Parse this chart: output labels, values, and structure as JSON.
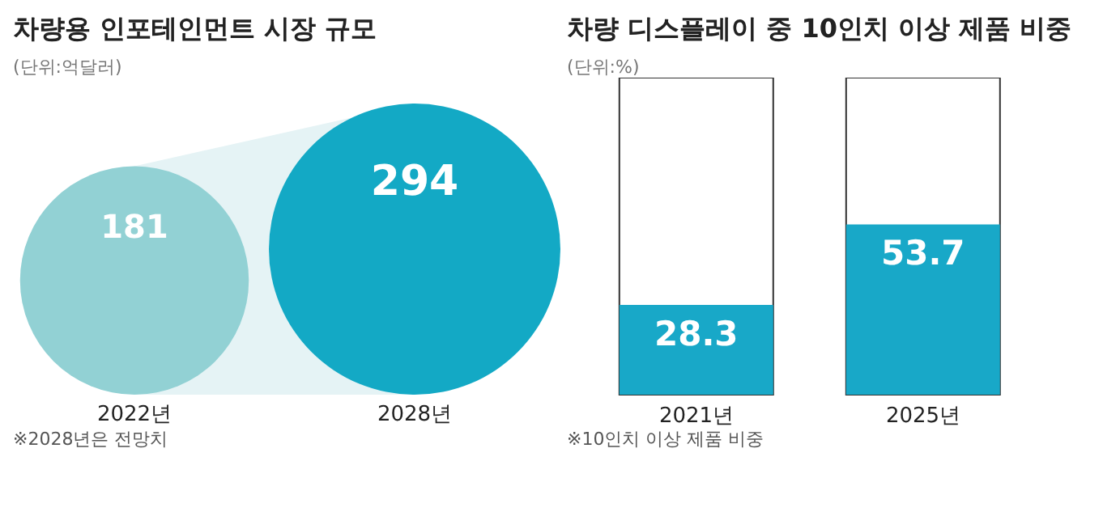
{
  "chart_data": [
    {
      "type": "other",
      "title": "차량용 인포테인먼트 시장 규모",
      "subtitle": "(단위:억달러)",
      "categories": [
        "2022년",
        "2028년"
      ],
      "values": [
        181,
        294
      ],
      "colors": [
        "#92d1d4",
        "#13a9c5"
      ],
      "data_labels": true,
      "annotations": [
        "※2028년은 전망치"
      ]
    },
    {
      "type": "bar",
      "title": "차량 디스플레이 중 10인치 이상 제품 비중",
      "subtitle": "(단위:%)",
      "categories": [
        "2021년",
        "2025년"
      ],
      "values": [
        28.3,
        53.7
      ],
      "color": "#18a8c8",
      "ylim": [
        0,
        100
      ],
      "data_labels": true,
      "annotations": [
        "※10인치 이상 제품 비중"
      ]
    }
  ]
}
